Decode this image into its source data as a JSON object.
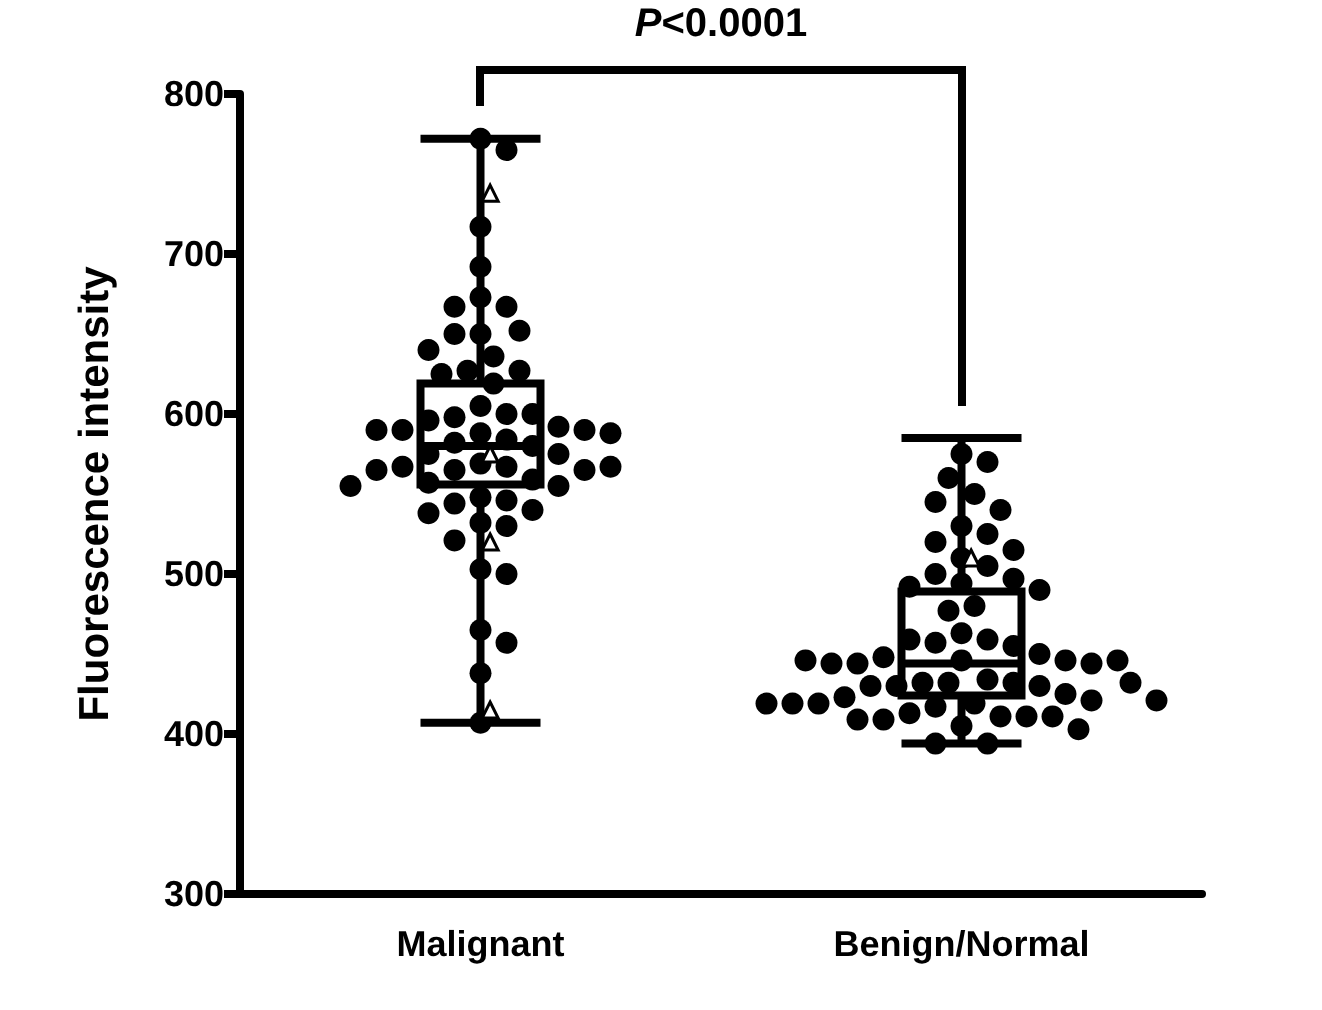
{
  "chart_data": {
    "type": "box",
    "ylabel": "Fluorescence intensity",
    "categories": [
      "Malignant",
      "Benign/Normal"
    ],
    "ylim": [
      300,
      800
    ],
    "yticks": [
      300,
      400,
      500,
      600,
      700,
      800
    ],
    "grid": false,
    "annotations": [
      "P<0.0001"
    ],
    "series": [
      {
        "color": "#000000",
        "boxes": [
          {
            "low": 407,
            "q1": 556,
            "median": 580,
            "q3": 619,
            "high": 772
          },
          {
            "low": 394,
            "q1": 424,
            "median": 444,
            "q3": 489,
            "high": 585
          }
        ]
      },
      {
        "type": "scatter",
        "marker": "circle",
        "color": "#000000",
        "x": [
          "Malignant",
          "Malignant",
          "Malignant",
          "Malignant",
          "Malignant",
          "Malignant",
          "Malignant",
          "Malignant",
          "Malignant",
          "Malignant",
          "Malignant",
          "Malignant",
          "Malignant",
          "Malignant",
          "Malignant",
          "Malignant",
          "Malignant",
          "Malignant",
          "Malignant",
          "Malignant",
          "Malignant",
          "Malignant",
          "Malignant",
          "Malignant",
          "Malignant",
          "Malignant",
          "Malignant",
          "Malignant",
          "Malignant",
          "Malignant",
          "Malignant",
          "Malignant",
          "Malignant",
          "Malignant",
          "Malignant",
          "Malignant",
          "Malignant",
          "Malignant",
          "Malignant",
          "Malignant",
          "Malignant",
          "Malignant",
          "Malignant",
          "Malignant",
          "Malignant",
          "Malignant",
          "Malignant",
          "Malignant",
          "Malignant",
          "Malignant",
          "Malignant",
          "Malignant",
          "Malignant",
          "Malignant",
          "Malignant",
          "Malignant",
          "Malignant"
        ],
        "values": [
          772,
          765,
          717,
          692,
          673,
          667,
          667,
          650,
          652,
          650,
          640,
          636,
          627,
          627,
          625,
          619,
          605,
          600,
          598,
          600,
          596,
          592,
          590,
          590,
          590,
          588,
          588,
          584,
          582,
          580,
          575,
          575,
          569,
          567,
          567,
          565,
          565,
          565,
          567,
          559,
          557,
          555,
          555,
          548,
          546,
          544,
          540,
          538,
          532,
          530,
          521,
          503,
          500,
          465,
          457,
          438,
          407
        ]
      },
      {
        "type": "scatter",
        "marker": "circle",
        "color": "#000000",
        "x": [
          "Benign/Normal",
          "Benign/Normal",
          "Benign/Normal",
          "Benign/Normal",
          "Benign/Normal",
          "Benign/Normal",
          "Benign/Normal",
          "Benign/Normal",
          "Benign/Normal",
          "Benign/Normal",
          "Benign/Normal",
          "Benign/Normal",
          "Benign/Normal",
          "Benign/Normal",
          "Benign/Normal",
          "Benign/Normal",
          "Benign/Normal",
          "Benign/Normal",
          "Benign/Normal",
          "Benign/Normal",
          "Benign/Normal",
          "Benign/Normal",
          "Benign/Normal",
          "Benign/Normal",
          "Benign/Normal",
          "Benign/Normal",
          "Benign/Normal",
          "Benign/Normal",
          "Benign/Normal",
          "Benign/Normal",
          "Benign/Normal",
          "Benign/Normal",
          "Benign/Normal",
          "Benign/Normal",
          "Benign/Normal",
          "Benign/Normal",
          "Benign/Normal",
          "Benign/Normal",
          "Benign/Normal",
          "Benign/Normal",
          "Benign/Normal",
          "Benign/Normal",
          "Benign/Normal",
          "Benign/Normal",
          "Benign/Normal",
          "Benign/Normal",
          "Benign/Normal",
          "Benign/Normal",
          "Benign/Normal",
          "Benign/Normal",
          "Benign/Normal",
          "Benign/Normal",
          "Benign/Normal",
          "Benign/Normal",
          "Benign/Normal",
          "Benign/Normal",
          "Benign/Normal",
          "Benign/Normal",
          "Benign/Normal",
          "Benign/Normal"
        ],
        "values": [
          575,
          570,
          560,
          550,
          545,
          540,
          530,
          525,
          520,
          515,
          510,
          505,
          500,
          497,
          494,
          492,
          490,
          480,
          477,
          463,
          459,
          457,
          455,
          459,
          450,
          448,
          446,
          446,
          444,
          444,
          444,
          446,
          446,
          434,
          432,
          432,
          432,
          430,
          430,
          432,
          430,
          425,
          423,
          421,
          419,
          419,
          417,
          419,
          421,
          419,
          411,
          413,
          411,
          409,
          411,
          409,
          405,
          403,
          394,
          394
        ]
      },
      {
        "type": "scatter",
        "marker": "triangle",
        "color": "#000000",
        "x": [
          "Malignant",
          "Malignant",
          "Malignant",
          "Malignant",
          "Benign/Normal"
        ],
        "values": [
          738,
          575,
          520,
          415,
          510
        ]
      }
    ]
  }
}
